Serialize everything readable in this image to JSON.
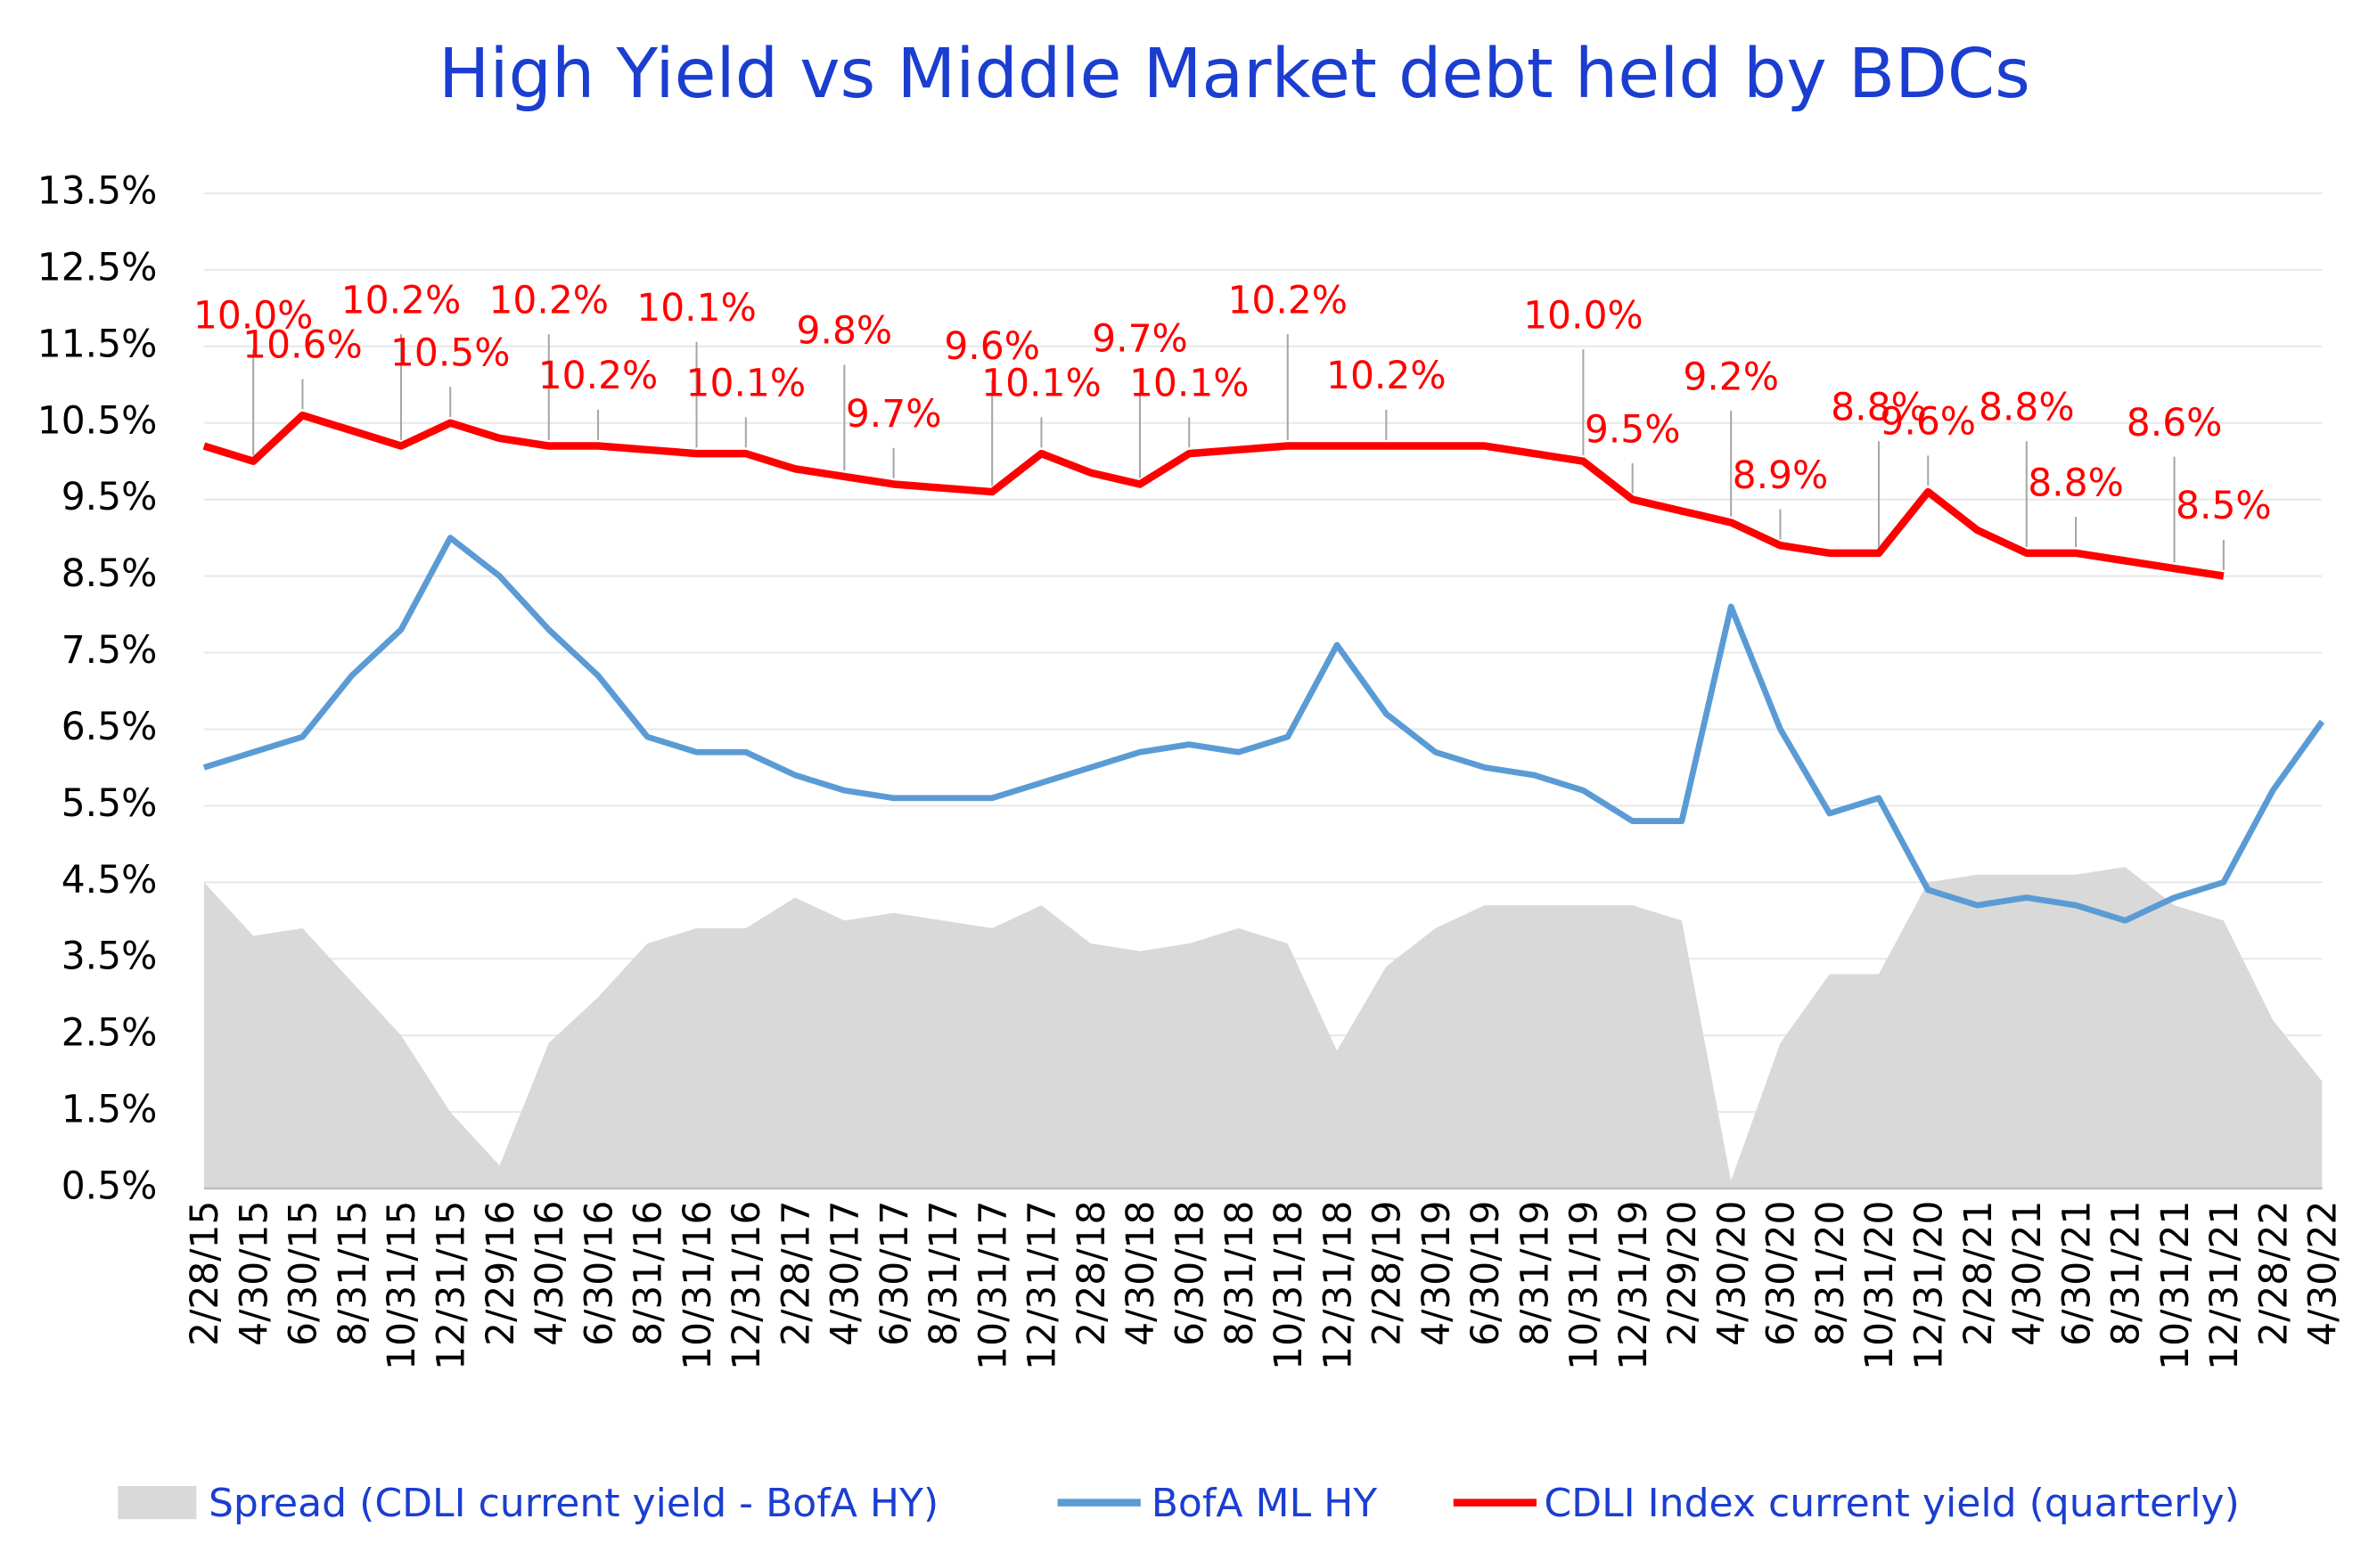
{
  "chart_data": {
    "type": "line",
    "title": "High Yield  vs  Middle Market debt held by BDCs",
    "categories": [
      "2/28/15",
      "4/30/15",
      "6/30/15",
      "8/31/15",
      "10/31/15",
      "12/31/15",
      "2/29/16",
      "4/30/16",
      "6/30/16",
      "8/31/16",
      "10/31/16",
      "12/31/16",
      "2/28/17",
      "4/30/17",
      "6/30/17",
      "8/31/17",
      "10/31/17",
      "12/31/17",
      "2/28/18",
      "4/30/18",
      "6/30/18",
      "8/31/18",
      "10/31/18",
      "12/31/18",
      "2/28/19",
      "4/30/19",
      "6/30/19",
      "8/31/19",
      "10/31/19",
      "12/31/19",
      "2/29/20",
      "4/30/20",
      "6/30/20",
      "8/31/20",
      "10/31/20",
      "12/31/20",
      "2/28/21",
      "4/30/21",
      "6/30/21",
      "8/31/21",
      "10/31/21",
      "12/31/21",
      "2/28/22",
      "4/30/22"
    ],
    "series": [
      {
        "name": "Spread (CDLI current yield - BofA HY)",
        "type": "area",
        "color": "#d9d9d9",
        "values": [
          4.5,
          3.8,
          3.9,
          3.2,
          2.5,
          1.5,
          0.8,
          2.4,
          3.0,
          3.7,
          3.9,
          3.9,
          4.3,
          4.0,
          4.1,
          4.0,
          3.9,
          4.2,
          3.7,
          3.6,
          3.7,
          3.9,
          3.7,
          2.3,
          3.4,
          3.9,
          4.2,
          4.2,
          4.2,
          4.2,
          4.0,
          0.6,
          2.4,
          3.3,
          3.3,
          4.5,
          4.6,
          4.6,
          4.6,
          4.7,
          4.2,
          4.0,
          2.7,
          1.9
        ]
      },
      {
        "name": "BofA ML HY",
        "type": "line",
        "color": "#5b9bd5",
        "values": [
          6.0,
          6.2,
          6.4,
          7.2,
          7.8,
          9.0,
          8.5,
          7.8,
          7.2,
          6.4,
          6.2,
          6.2,
          5.9,
          5.7,
          5.6,
          5.6,
          5.6,
          5.8,
          6.0,
          6.2,
          6.3,
          6.2,
          6.4,
          7.6,
          6.7,
          6.2,
          6.0,
          5.9,
          5.7,
          5.3,
          5.3,
          8.1,
          6.5,
          5.4,
          5.6,
          4.4,
          4.2,
          4.3,
          4.2,
          4.0,
          4.3,
          4.5,
          5.7,
          6.6
        ]
      },
      {
        "name": "CDLI Index current yield (quarterly)",
        "type": "line",
        "color": "#ff0000",
        "values": [
          10.2,
          10.0,
          10.6,
          10.4,
          10.2,
          10.5,
          10.3,
          10.2,
          10.2,
          10.15,
          10.1,
          10.1,
          9.9,
          9.8,
          9.7,
          9.65,
          9.6,
          10.1,
          9.85,
          9.7,
          10.1,
          10.15,
          10.2,
          10.2,
          10.2,
          10.2,
          10.2,
          10.1,
          10.0,
          9.5,
          9.35,
          9.2,
          8.9,
          8.8,
          8.8,
          9.6,
          9.1,
          8.8,
          8.8,
          8.7,
          8.6,
          8.5,
          null,
          null
        ],
        "value_labels": [
          null,
          "10.0%",
          "10.6%",
          null,
          "10.2%",
          "10.5%",
          null,
          "10.2%",
          "10.2%",
          null,
          "10.1%",
          "10.1%",
          null,
          "9.8%",
          "9.7%",
          null,
          "9.6%",
          "10.1%",
          null,
          "9.7%",
          "10.1%",
          null,
          "10.2%",
          null,
          "10.2%",
          null,
          null,
          null,
          "10.0%",
          "9.5%",
          null,
          "9.2%",
          "8.9%",
          null,
          "8.8%",
          "9.6%",
          null,
          "8.8%",
          "8.8%",
          null,
          "8.6%",
          "8.5%",
          null,
          null
        ]
      }
    ],
    "ylim": [
      0.5,
      13.5
    ],
    "yticks": [
      {
        "value": 0.5,
        "label": "0.5%"
      },
      {
        "value": 1.5,
        "label": "1.5%"
      },
      {
        "value": 2.5,
        "label": "2.5%"
      },
      {
        "value": 3.5,
        "label": "3.5%"
      },
      {
        "value": 4.5,
        "label": "4.5%"
      },
      {
        "value": 5.5,
        "label": "5.5%"
      },
      {
        "value": 6.5,
        "label": "6.5%"
      },
      {
        "value": 7.5,
        "label": "7.5%"
      },
      {
        "value": 8.5,
        "label": "8.5%"
      },
      {
        "value": 9.5,
        "label": "9.5%"
      },
      {
        "value": 10.5,
        "label": "10.5%"
      },
      {
        "value": 11.5,
        "label": "11.5%"
      },
      {
        "value": 12.5,
        "label": "12.5%"
      },
      {
        "value": 13.5,
        "label": "13.5%"
      }
    ],
    "grid": true,
    "legend": "bottom"
  }
}
